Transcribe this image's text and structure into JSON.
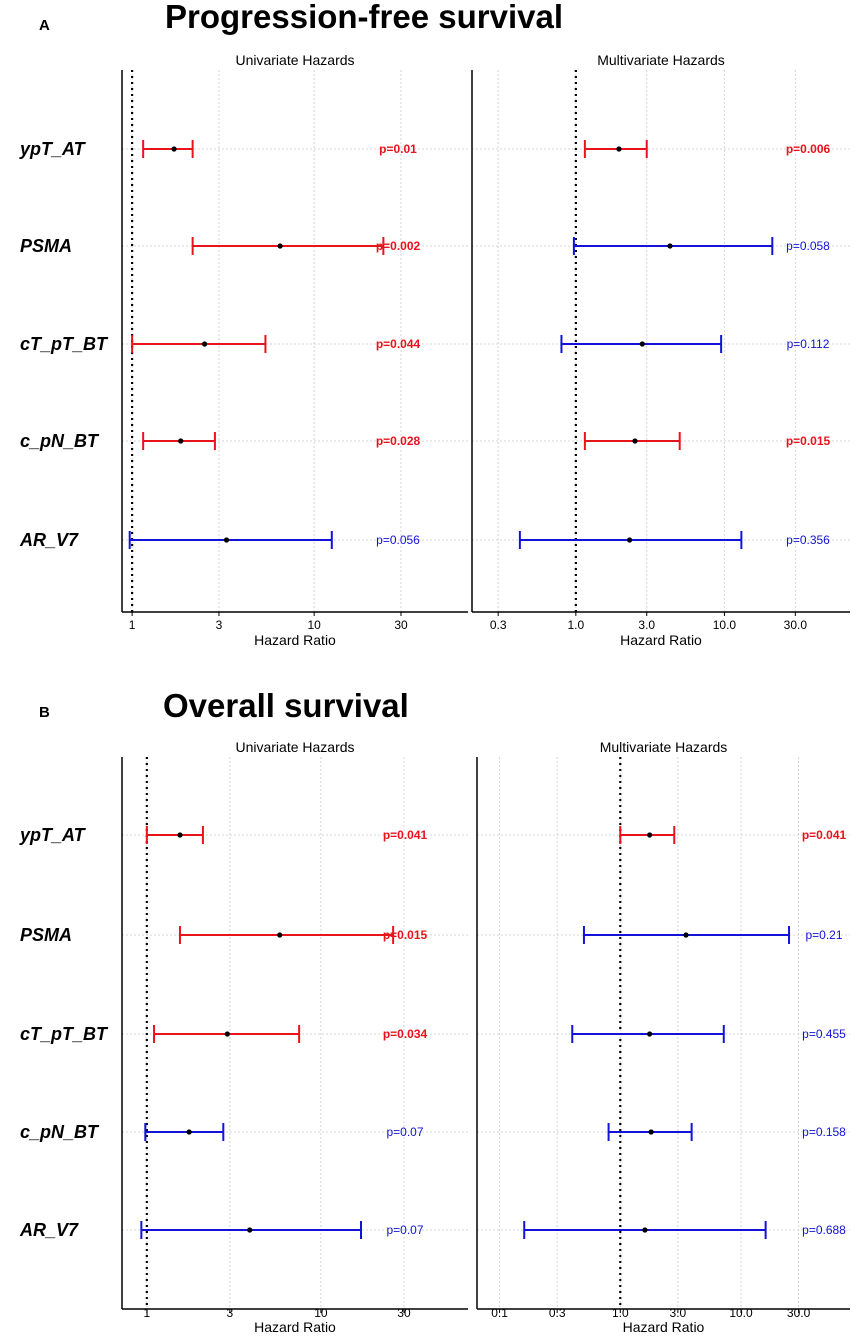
{
  "colors": {
    "significant": "#e8131b",
    "nonsignificant": "#1212d9",
    "point": "#000000",
    "grid": "#d4d4d4"
  },
  "chart_data": [
    {
      "type": "forest",
      "panel": "A",
      "section_title": "Progression-free survival",
      "subplot_title": "Univariate Hazards",
      "xlabel": "Hazard Ratio",
      "xscale": "log",
      "xlim": [
        0.88,
        70
      ],
      "xticks": [
        1,
        3,
        10,
        30
      ],
      "xtick_labels": [
        "1",
        "3",
        "10",
        "30"
      ],
      "gridlines": [
        1,
        3,
        10,
        30
      ],
      "reference_line": 1,
      "rows": [
        {
          "label": "ypT_AT",
          "hr": 1.7,
          "lo": 1.15,
          "hi": 2.15,
          "p": "p=0.01",
          "significant": true
        },
        {
          "label": "PSMA",
          "hr": 6.5,
          "lo": 2.15,
          "hi": 24,
          "p": "p=0.002",
          "significant": true
        },
        {
          "label": "cT_pT_BT",
          "hr": 2.5,
          "lo": 1.0,
          "hi": 5.4,
          "p": "p=0.044",
          "significant": true
        },
        {
          "label": "c_pN_BT",
          "hr": 1.85,
          "lo": 1.15,
          "hi": 2.85,
          "p": "p=0.028",
          "significant": true
        },
        {
          "label": "AR_V7",
          "hr": 3.3,
          "lo": 0.97,
          "hi": 12.5,
          "p": "p=0.056",
          "significant": false
        }
      ]
    },
    {
      "type": "forest",
      "panel": "A",
      "subplot_title": "Multivariate Hazards",
      "xlabel": "Hazard Ratio",
      "xscale": "log",
      "xlim": [
        0.2,
        70
      ],
      "xticks": [
        0.3,
        1.0,
        3.0,
        10.0,
        30.0
      ],
      "xtick_labels": [
        "0.3",
        "1.0",
        "3.0",
        "10.0",
        "30.0"
      ],
      "gridlines": [
        0.3,
        1.0,
        3.0,
        10.0,
        30.0
      ],
      "reference_line": 1,
      "rows": [
        {
          "label": "ypT_AT",
          "hr": 1.95,
          "lo": 1.15,
          "hi": 3.0,
          "p": "p=0.006",
          "significant": true
        },
        {
          "label": "PSMA",
          "hr": 4.3,
          "lo": 0.97,
          "hi": 21,
          "p": "p=0.058",
          "significant": false
        },
        {
          "label": "cT_pT_BT",
          "hr": 2.8,
          "lo": 0.8,
          "hi": 9.5,
          "p": "p=0.112",
          "significant": false
        },
        {
          "label": "c_pN_BT",
          "hr": 2.5,
          "lo": 1.15,
          "hi": 5.0,
          "p": "p=0.015",
          "significant": true
        },
        {
          "label": "AR_V7",
          "hr": 2.3,
          "lo": 0.42,
          "hi": 13,
          "p": "p=0.356",
          "significant": false
        }
      ]
    },
    {
      "type": "forest",
      "panel": "B",
      "section_title": "Overall survival",
      "subplot_title": "Univariate Hazards",
      "xlabel": "Hazard Ratio",
      "xscale": "log",
      "xlim": [
        0.72,
        70
      ],
      "xticks": [
        1,
        3,
        10,
        30
      ],
      "xtick_labels": [
        "1",
        "3",
        "10",
        "30"
      ],
      "gridlines": [
        1,
        3,
        10,
        30
      ],
      "reference_line": 1,
      "rows": [
        {
          "label": "ypT_AT",
          "hr": 1.55,
          "lo": 1.0,
          "hi": 2.1,
          "p": "p=0.041",
          "significant": true
        },
        {
          "label": "PSMA",
          "hr": 5.8,
          "lo": 1.55,
          "hi": 26,
          "p": "p=0.015",
          "significant": true
        },
        {
          "label": "cT_pT_BT",
          "hr": 2.9,
          "lo": 1.1,
          "hi": 7.5,
          "p": "p=0.034",
          "significant": true
        },
        {
          "label": "c_pN_BT",
          "hr": 1.75,
          "lo": 0.98,
          "hi": 2.75,
          "p": "p=0.07",
          "significant": false
        },
        {
          "label": "AR_V7",
          "hr": 3.9,
          "lo": 0.93,
          "hi": 17,
          "p": "p=0.07",
          "significant": false
        }
      ]
    },
    {
      "type": "forest",
      "panel": "B",
      "subplot_title": "Multivariate Hazards",
      "xlabel": "Hazard Ratio",
      "xscale": "log",
      "xlim": [
        0.065,
        80
      ],
      "xticks": [
        0.1,
        0.3,
        1.0,
        3.0,
        10.0,
        30.0
      ],
      "xtick_labels": [
        "0.1",
        "0.3",
        "1.0",
        "3.0",
        "10.0",
        "30.0"
      ],
      "gridlines": [
        0.1,
        0.3,
        1.0,
        3.0,
        10.0,
        30.0
      ],
      "reference_line": 1,
      "rows": [
        {
          "label": "ypT_AT",
          "hr": 1.75,
          "lo": 1.0,
          "hi": 2.8,
          "p": "p=0.041",
          "significant": true
        },
        {
          "label": "PSMA",
          "hr": 3.5,
          "lo": 0.5,
          "hi": 25,
          "p": "p=0.21",
          "significant": false
        },
        {
          "label": "cT_pT_BT",
          "hr": 1.75,
          "lo": 0.4,
          "hi": 7.2,
          "p": "p=0.455",
          "significant": false
        },
        {
          "label": "c_pN_BT",
          "hr": 1.8,
          "lo": 0.8,
          "hi": 3.9,
          "p": "p=0.158",
          "significant": false
        },
        {
          "label": "AR_V7",
          "hr": 1.6,
          "lo": 0.16,
          "hi": 16,
          "p": "p=0.688",
          "significant": false
        }
      ]
    }
  ]
}
